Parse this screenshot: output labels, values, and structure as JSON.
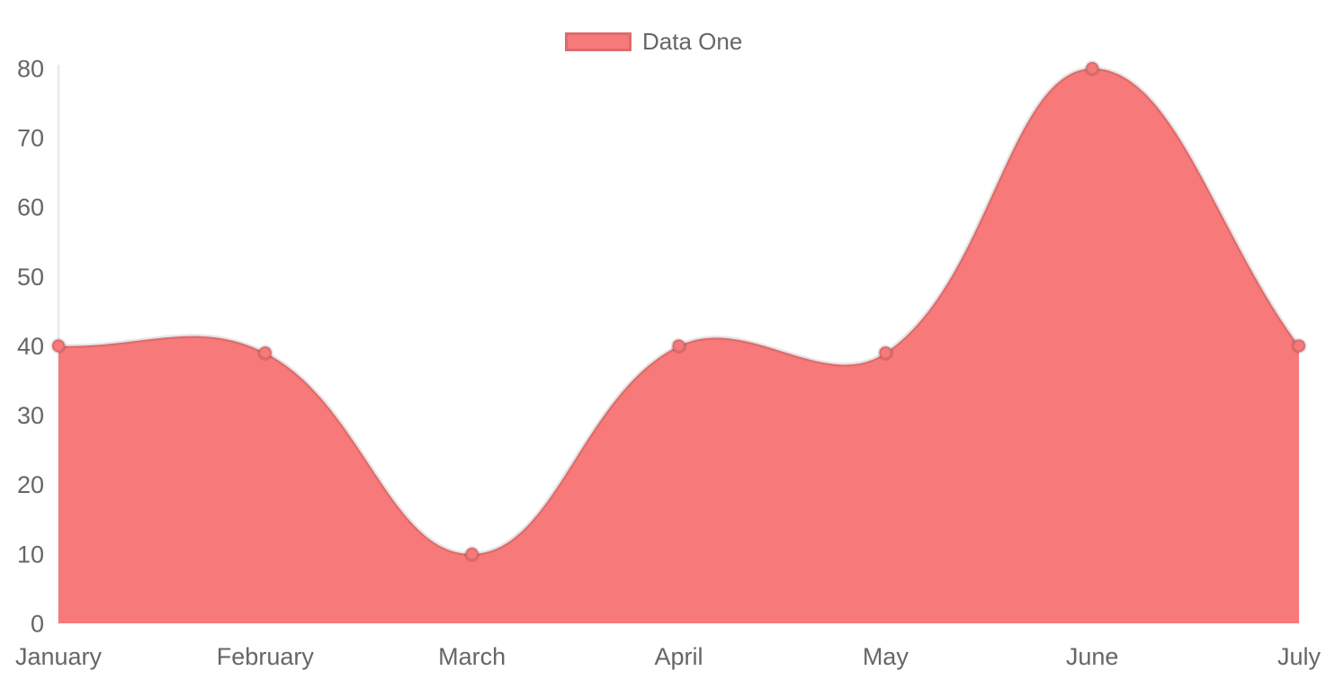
{
  "chart_data": {
    "type": "area",
    "title": "",
    "categories": [
      "January",
      "February",
      "March",
      "April",
      "May",
      "June",
      "July"
    ],
    "series": [
      {
        "name": "Data One",
        "values": [
          40,
          39,
          10,
          40,
          39,
          80,
          40
        ]
      }
    ],
    "xlabel": "",
    "ylabel": "",
    "ylim": [
      0,
      80
    ],
    "yticks": [
      0,
      10,
      20,
      30,
      40,
      50,
      60,
      70,
      80
    ],
    "grid": false,
    "legend_position": "top-center",
    "line_tension": 0.4,
    "colors": {
      "fill": "#f87979",
      "line": "rgba(0,0,0,0.1)",
      "point_fill": "#f87979",
      "point_border": "rgba(0,0,0,0.12)",
      "axis_line": "#e9e9e9",
      "tick_text": "#666666",
      "legend_text": "#666666",
      "background": "#ffffff"
    }
  },
  "legend": {
    "label": "Data One"
  }
}
